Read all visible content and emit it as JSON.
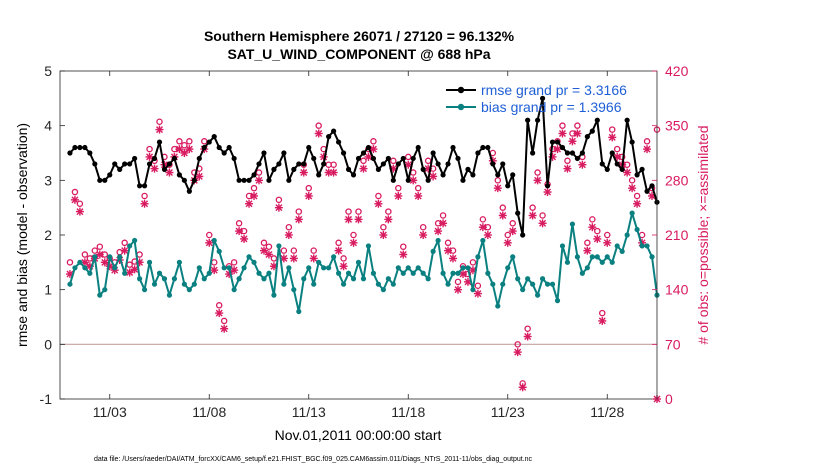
{
  "chart_data": {
    "type": "line",
    "title_line1": "Southern Hemisphere 26071 / 27120 = 96.132%",
    "title_line2": "SAT_U_WIND_COMPONENT @ 688 hPa",
    "xlabel": "Nov.01,2011 00:00:00 start",
    "ylabel_left": "rmse and bias (model - observation)",
    "ylabel_right": "# of obs: o=possible; ×=assimilated",
    "footer": "data file: /Users/raeder/DAI/ATM_forcXX/CAM6_setup/f.e21.FHIST_BGC.f09_025.CAM6assim.011/Diags_NTrS_2011-11/obs_diag_output.nc",
    "xlim": [
      0.5,
      30.5
    ],
    "ylim_left": [
      -1,
      5
    ],
    "ylim_right": [
      0,
      420
    ],
    "x_ticks": [
      3,
      8,
      13,
      18,
      23,
      28
    ],
    "x_tick_labels": [
      "11/03",
      "11/08",
      "11/13",
      "11/18",
      "11/23",
      "11/28"
    ],
    "y_ticks_left": [
      -1,
      0,
      1,
      2,
      3,
      4,
      5
    ],
    "y_tick_labels_left": [
      "-1",
      "0",
      "1",
      "2",
      "3",
      "4",
      "5"
    ],
    "y_ticks_right": [
      0,
      70,
      140,
      210,
      280,
      350,
      420
    ],
    "y_tick_labels_right": [
      "0",
      "70",
      "140",
      "210",
      "280",
      "350",
      "420"
    ],
    "x_step": 0.25,
    "x_start": 1.0,
    "colors": {
      "rmse": "#000000",
      "bias": "#0a8080",
      "obs": "#d81b60",
      "zero_line": "#c8a0a0",
      "legend_text": "#1f5fd6"
    },
    "legend": [
      {
        "name": "rmse grand pr = 3.3166",
        "series": "rmse"
      },
      {
        "name": "bias grand pr = 1.3966",
        "series": "bias"
      }
    ],
    "series": [
      {
        "name": "rmse",
        "values": [
          3.5,
          3.6,
          3.6,
          3.6,
          3.5,
          3.3,
          3.0,
          3.0,
          3.1,
          3.3,
          3.2,
          3.3,
          3.3,
          3.4,
          2.9,
          2.9,
          3.3,
          3.4,
          3.7,
          3.2,
          3.3,
          3.4,
          3.1,
          3.0,
          2.8,
          3.0,
          3.4,
          3.6,
          3.7,
          3.8,
          3.6,
          3.5,
          3.6,
          3.4,
          3.0,
          3.0,
          3.0,
          3.1,
          3.3,
          3.5,
          3.0,
          3.2,
          3.3,
          3.5,
          3.0,
          3.2,
          3.3,
          3.3,
          3.6,
          3.4,
          3.1,
          3.3,
          3.8,
          3.9,
          3.7,
          3.5,
          3.2,
          3.1,
          3.4,
          3.5,
          3.6,
          3.4,
          3.2,
          3.3,
          3.4,
          3.0,
          3.3,
          3.4,
          3.0,
          3.4,
          3.6,
          3.2,
          3.0,
          3.5,
          3.3,
          3.1,
          3.3,
          3.6,
          3.4,
          3.0,
          3.2,
          3.1,
          3.5,
          3.6,
          3.6,
          3.3,
          3.1,
          3.3,
          2.9,
          3.1,
          2.4,
          2.0,
          4.1,
          3.5,
          4.1,
          4.5,
          2.9,
          3.7,
          3.7,
          3.6,
          3.5,
          3.5,
          3.4,
          3.5,
          3.8,
          3.9,
          4.1,
          3.3,
          3.2,
          3.5,
          3.3,
          3.2,
          4.1,
          3.7,
          3.1,
          3.2,
          2.8,
          2.9,
          2.6
        ]
      },
      {
        "name": "bias",
        "values": [
          1.1,
          1.4,
          1.5,
          1.4,
          1.3,
          1.6,
          0.9,
          1.0,
          1.6,
          1.4,
          1.6,
          1.3,
          1.8,
          1.9,
          1.2,
          1.0,
          1.5,
          1.1,
          1.3,
          1.2,
          0.9,
          1.2,
          1.5,
          1.1,
          1.0,
          1.1,
          1.4,
          1.2,
          1.3,
          1.9,
          1.7,
          1.4,
          1.4,
          1.0,
          1.2,
          1.4,
          1.6,
          1.5,
          1.3,
          1.2,
          1.3,
          0.9,
          1.8,
          1.1,
          1.4,
          1.0,
          0.6,
          1.2,
          1.4,
          1.1,
          1.5,
          1.4,
          1.4,
          1.6,
          1.3,
          1.1,
          1.3,
          1.2,
          1.5,
          1.2,
          1.8,
          1.3,
          1.1,
          1.0,
          1.2,
          1.1,
          1.4,
          1.3,
          1.4,
          1.3,
          1.4,
          1.3,
          1.2,
          1.7,
          1.9,
          1.3,
          1.1,
          1.3,
          1.3,
          1.4,
          1.4,
          1.0,
          1.6,
          1.9,
          1.3,
          1.1,
          0.7,
          1.1,
          1.4,
          1.6,
          1.2,
          1.0,
          1.2,
          1.1,
          0.9,
          1.2,
          1.1,
          1.1,
          0.8,
          1.8,
          1.5,
          2.2,
          1.6,
          1.3,
          1.4,
          1.6,
          1.6,
          1.5,
          1.6,
          1.5,
          1.8,
          1.7,
          2.0,
          2.4,
          2.1,
          1.8,
          1.8,
          1.6,
          0.9
        ]
      },
      {
        "name": "obs_possible",
        "values": [
          175,
          265,
          250,
          185,
          180,
          190,
          195,
          185,
          180,
          175,
          188,
          200,
          172,
          176,
          185,
          260,
          320,
          305,
          355,
          310,
          300,
          320,
          330,
          325,
          330,
          290,
          295,
          330,
          210,
          175,
          120,
          100,
          170,
          175,
          225,
          215,
          260,
          270,
          290,
          200,
          195,
          180,
          255,
          190,
          220,
          190,
          240,
          300,
          270,
          190,
          350,
          320,
          300,
          300,
          200,
          180,
          240,
          210,
          240,
          305,
          320,
          330,
          260,
          220,
          240,
          305,
          270,
          195,
          310,
          290,
          270,
          220,
          305,
          295,
          225,
          235,
          200,
          190,
          150,
          170,
          160,
          175,
          145,
          230,
          220,
          315,
          280,
          245,
          210,
          225,
          70,
          20,
          90,
          245,
          290,
          235,
          275,
          320,
          330,
          350,
          305,
          340,
          350,
          310,
          200,
          230,
          215,
          110,
          210,
          345,
          320,
          310,
          300,
          280,
          260,
          210,
          330,
          270,
          345
        ]
      },
      {
        "name": "obs_assimilated",
        "values": [
          160,
          255,
          240,
          175,
          170,
          180,
          185,
          175,
          170,
          165,
          178,
          190,
          162,
          166,
          175,
          250,
          310,
          295,
          345,
          300,
          290,
          310,
          320,
          315,
          320,
          280,
          285,
          320,
          200,
          165,
          110,
          90,
          160,
          165,
          215,
          205,
          250,
          260,
          280,
          190,
          185,
          170,
          245,
          180,
          210,
          180,
          230,
          290,
          260,
          180,
          340,
          310,
          290,
          290,
          190,
          170,
          230,
          200,
          230,
          295,
          310,
          320,
          250,
          210,
          230,
          295,
          260,
          185,
          300,
          280,
          260,
          210,
          295,
          285,
          215,
          225,
          190,
          180,
          140,
          160,
          150,
          165,
          135,
          220,
          210,
          305,
          270,
          235,
          200,
          215,
          60,
          15,
          80,
          235,
          280,
          225,
          265,
          310,
          320,
          340,
          295,
          330,
          340,
          300,
          190,
          220,
          205,
          100,
          200,
          335,
          310,
          300,
          290,
          270,
          250,
          200,
          320,
          260,
          0
        ]
      }
    ]
  }
}
